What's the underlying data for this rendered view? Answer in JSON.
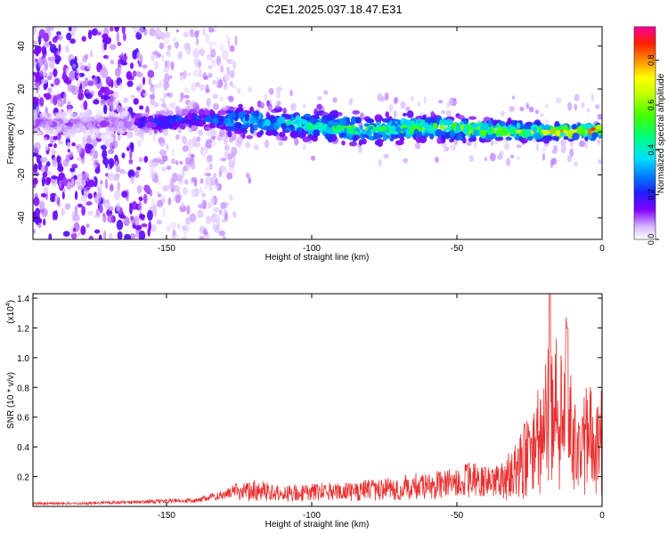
{
  "title": "C2E1.2025.037.18.47.E31",
  "chart_data": [
    {
      "type": "heatmap",
      "xlabel": "Height of straight line (km)",
      "ylabel": "Frequency (Hz)",
      "xlim": [
        -196,
        0
      ],
      "ylim": [
        -50,
        49
      ],
      "xticks": [
        "-150",
        "-100",
        "-50",
        "0"
      ],
      "xtick_values": [
        -150,
        -100,
        -50,
        0
      ],
      "yticks": [
        "-40",
        "-20",
        "0",
        "20",
        "40"
      ],
      "ytick_values": [
        -40,
        -20,
        0,
        20,
        40
      ],
      "colorbar": {
        "label": "Normalized spectral amplitude",
        "range": [
          0,
          0.95
        ],
        "ticks": [
          "0.0",
          "0.2",
          "0.4",
          "0.6",
          "0.8"
        ],
        "tick_values": [
          0.0,
          0.2,
          0.4,
          0.6,
          0.8
        ]
      },
      "ridge": {
        "x": [
          -160,
          -140,
          -120,
          -100,
          -80,
          -60,
          -40,
          -20,
          -10,
          0
        ],
        "frequency": [
          4,
          6,
          5,
          3,
          1,
          2,
          1,
          0,
          0,
          1
        ],
        "amplitude": [
          0.2,
          0.25,
          0.35,
          0.45,
          0.5,
          0.55,
          0.6,
          0.65,
          0.85,
          0.9
        ]
      }
    },
    {
      "type": "line",
      "xlabel": "Height of straight line (km)",
      "ylabel": "SNR (10 * v/v)",
      "scale_label": "(x10",
      "scale_exponent": "4",
      "xlim": [
        -196,
        0
      ],
      "ylim": [
        0,
        1.43
      ],
      "xticks": [
        "-150",
        "-100",
        "-50",
        "0"
      ],
      "xtick_values": [
        -150,
        -100,
        -50,
        0
      ],
      "yticks": [
        "0.2",
        "0.4",
        "0.6",
        "0.8",
        "1.0",
        "1.2",
        "1.4"
      ],
      "ytick_values": [
        0.2,
        0.4,
        0.6,
        0.8,
        1.0,
        1.2,
        1.4
      ],
      "series": [
        {
          "color": "#e83030",
          "x": [
            -196,
            -180,
            -160,
            -140,
            -130,
            -125,
            -120,
            -110,
            -100,
            -90,
            -80,
            -70,
            -60,
            -50,
            -45,
            -40,
            -35,
            -30,
            -25,
            -20,
            -18,
            -15,
            -12,
            -10,
            -8,
            -5,
            0
          ],
          "y": [
            0.02,
            0.02,
            0.03,
            0.04,
            0.08,
            0.12,
            0.15,
            0.12,
            0.13,
            0.14,
            0.15,
            0.17,
            0.2,
            0.22,
            0.25,
            0.22,
            0.25,
            0.4,
            0.6,
            0.8,
            1.43,
            0.9,
            1.2,
            0.7,
            0.6,
            0.75,
            0.72
          ]
        }
      ]
    }
  ]
}
